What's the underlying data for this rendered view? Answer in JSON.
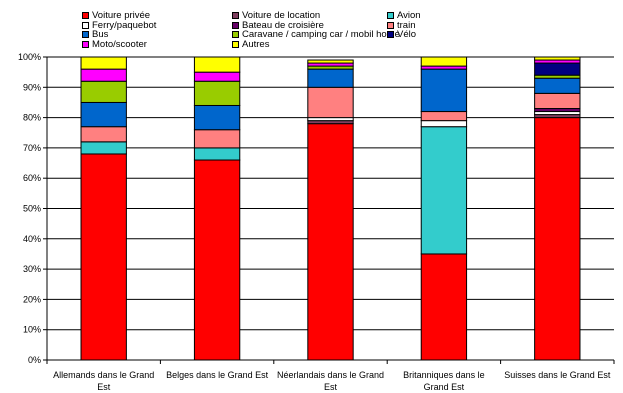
{
  "chart_data": {
    "type": "bar",
    "stacked": true,
    "title": "",
    "xlabel": "",
    "ylabel": "",
    "ylim": [
      0,
      100
    ],
    "y_tick_labels": [
      "0%",
      "10%",
      "20%",
      "30%",
      "40%",
      "50%",
      "60%",
      "70%",
      "80%",
      "90%",
      "100%"
    ],
    "grid": true,
    "legend_position": "top",
    "categories": [
      "Allemands dans le Grand Est",
      "Belges dans le Grand Est",
      "Néerlandais dans le Grand Est",
      "Britanniques dans le Grand Est",
      "Suisses dans le Grand Est"
    ],
    "series": [
      {
        "name": "Voiture privée",
        "color": "#ff0000",
        "values": [
          68,
          66,
          78,
          35,
          80
        ]
      },
      {
        "name": "Voiture de location",
        "color": "#7f3f5f",
        "values": [
          0,
          0,
          1,
          0,
          1
        ]
      },
      {
        "name": "Avion",
        "color": "#33cccc",
        "values": [
          4,
          4,
          0,
          42,
          0
        ]
      },
      {
        "name": "Ferry/paquebot",
        "color": "#ffffff",
        "values": [
          0,
          0,
          1,
          2,
          1
        ]
      },
      {
        "name": "Bateau de croisière",
        "color": "#660066",
        "values": [
          0,
          0,
          0,
          0,
          1
        ]
      },
      {
        "name": "train",
        "color": "#ff8080",
        "values": [
          5,
          6,
          10,
          3,
          5
        ]
      },
      {
        "name": "Bus",
        "color": "#0066cc",
        "values": [
          8,
          8,
          6,
          14,
          5
        ]
      },
      {
        "name": "Caravane / camping car / mobil home",
        "color": "#99cc00",
        "values": [
          7,
          8,
          1,
          0,
          1
        ]
      },
      {
        "name": "Vélo",
        "color": "#000080",
        "values": [
          0,
          0,
          0,
          0,
          4
        ]
      },
      {
        "name": "Moto/scooter",
        "color": "#ff00ff",
        "values": [
          4,
          3,
          1,
          1,
          1
        ]
      },
      {
        "name": "Autres",
        "color": "#ffff00",
        "values": [
          4,
          5,
          1,
          3,
          1
        ]
      }
    ]
  }
}
